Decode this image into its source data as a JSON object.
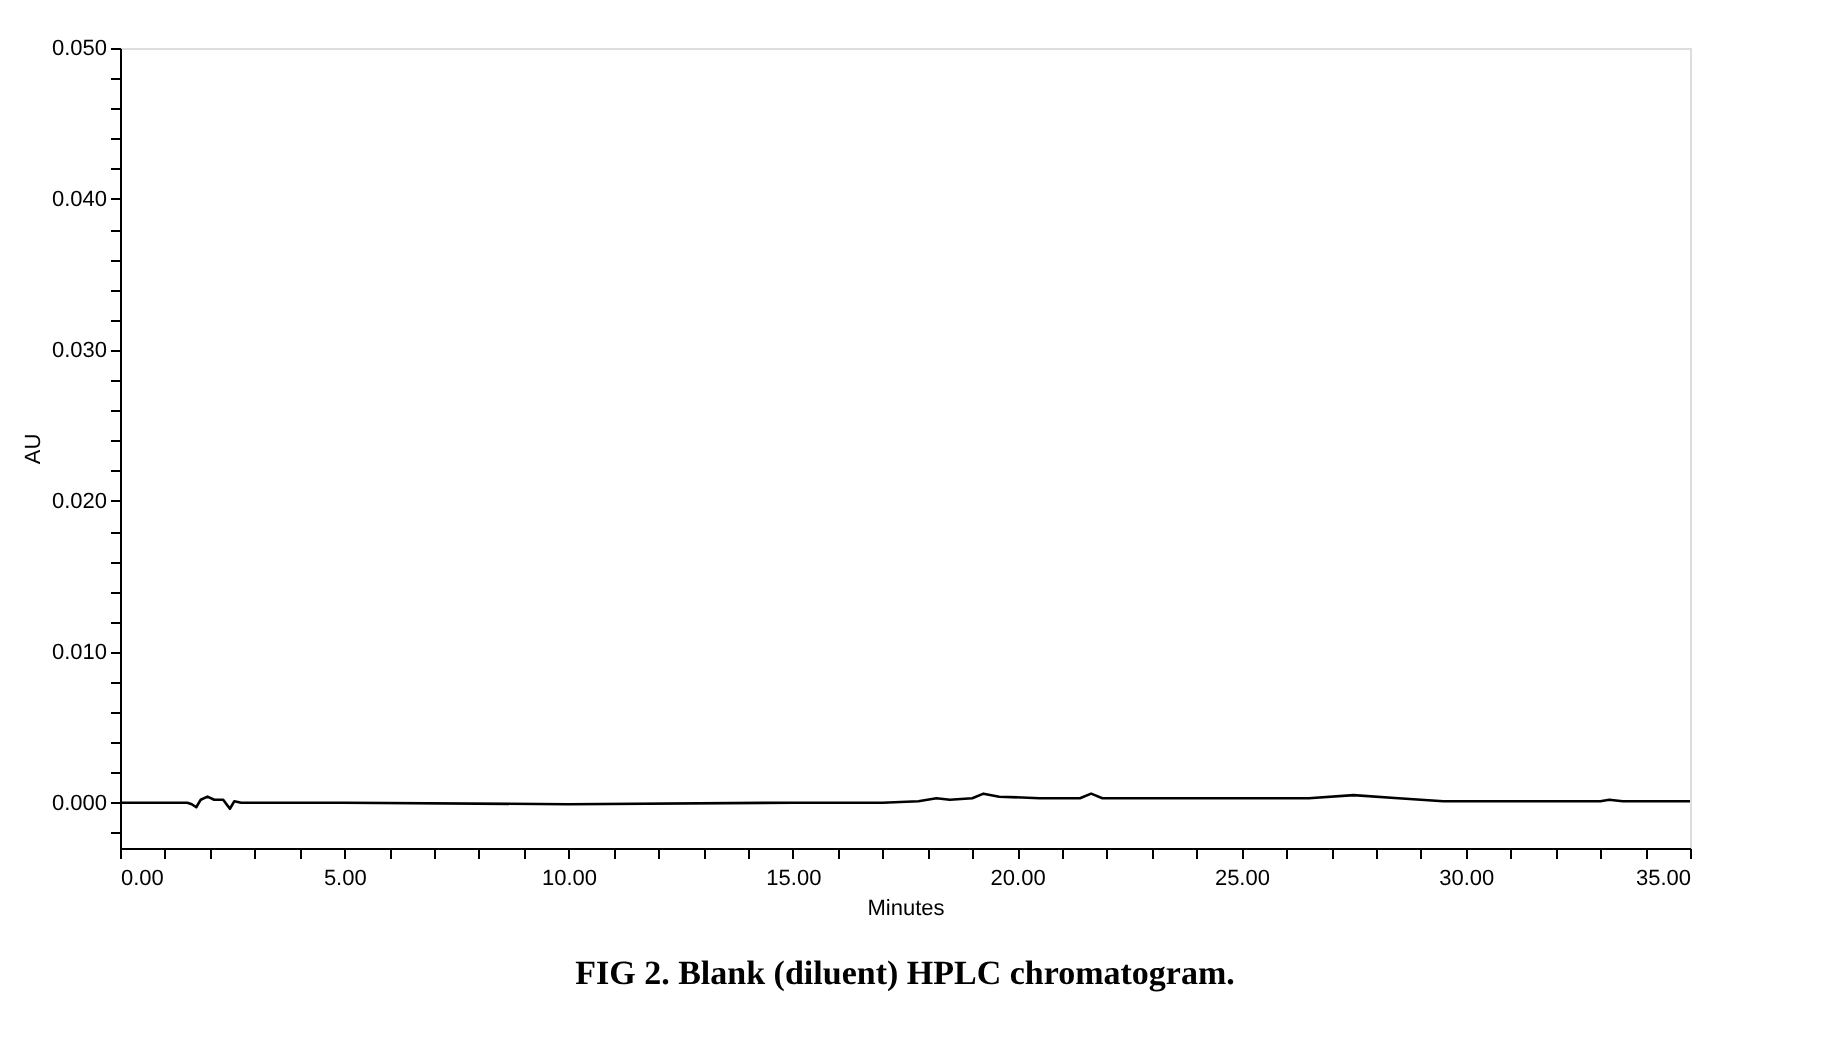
{
  "chart_data": {
    "type": "line",
    "title": "FIG 2. Blank (diluent) HPLC chromatogram.",
    "xlabel": "Minutes",
    "ylabel": "AU",
    "x": [
      0,
      1.5,
      1.6,
      1.7,
      1.8,
      1.95,
      2.1,
      2.3,
      2.45,
      2.55,
      2.7,
      5,
      10,
      15,
      17,
      17.8,
      18.2,
      18.5,
      19.0,
      19.25,
      19.6,
      20.5,
      21.4,
      21.65,
      21.9,
      23,
      25,
      26.5,
      27.5,
      28.5,
      29.5,
      32,
      33.0,
      33.2,
      33.5,
      35
    ],
    "series": [
      {
        "color": "#000000",
        "values": [
          0,
          0,
          -0.0001,
          -0.0003,
          0.0002,
          0.0004,
          0.0002,
          0.0002,
          -0.0004,
          0.0001,
          0,
          0,
          -0.0001,
          0,
          0,
          0.0001,
          0.0003,
          0.0002,
          0.0003,
          0.0006,
          0.0004,
          0.0003,
          0.0003,
          0.0006,
          0.0003,
          0.0003,
          0.0003,
          0.0003,
          0.0005,
          0.0003,
          0.0001,
          0.0001,
          0.0001,
          0.0002,
          0.0001,
          0.0001
        ]
      }
    ],
    "xlim": [
      0,
      35
    ],
    "ylim": [
      -0.003,
      0.05
    ],
    "xticks": [
      {
        "value": 0,
        "label": "0.00"
      },
      {
        "value": 1,
        "label": null
      },
      {
        "value": 2,
        "label": null
      },
      {
        "value": 3,
        "label": null
      },
      {
        "value": 4,
        "label": null
      },
      {
        "value": 5,
        "label": "5.00"
      },
      {
        "value": 6,
        "label": null
      },
      {
        "value": 7,
        "label": null
      },
      {
        "value": 8,
        "label": null
      },
      {
        "value": 9,
        "label": null
      },
      {
        "value": 10,
        "label": "10.00"
      },
      {
        "value": 11,
        "label": null
      },
      {
        "value": 12,
        "label": null
      },
      {
        "value": 13,
        "label": null
      },
      {
        "value": 14,
        "label": null
      },
      {
        "value": 15,
        "label": "15.00"
      },
      {
        "value": 16,
        "label": null
      },
      {
        "value": 17,
        "label": null
      },
      {
        "value": 18,
        "label": null
      },
      {
        "value": 19,
        "label": null
      },
      {
        "value": 20,
        "label": "20.00"
      },
      {
        "value": 21,
        "label": null
      },
      {
        "value": 22,
        "label": null
      },
      {
        "value": 23,
        "label": null
      },
      {
        "value": 24,
        "label": null
      },
      {
        "value": 25,
        "label": "25.00"
      },
      {
        "value": 26,
        "label": null
      },
      {
        "value": 27,
        "label": null
      },
      {
        "value": 28,
        "label": null
      },
      {
        "value": 29,
        "label": null
      },
      {
        "value": 30,
        "label": "30.00"
      },
      {
        "value": 31,
        "label": null
      },
      {
        "value": 32,
        "label": null
      },
      {
        "value": 33,
        "label": null
      },
      {
        "value": 34,
        "label": null
      },
      {
        "value": 35,
        "label": "35.00"
      }
    ],
    "yticks": [
      {
        "value": -0.002,
        "label": null
      },
      {
        "value": 0,
        "label": "0.000"
      },
      {
        "value": 0.002,
        "label": null
      },
      {
        "value": 0.004,
        "label": null
      },
      {
        "value": 0.006,
        "label": null
      },
      {
        "value": 0.008,
        "label": null
      },
      {
        "value": 0.01,
        "label": "0.010"
      },
      {
        "value": 0.012,
        "label": null
      },
      {
        "value": 0.014,
        "label": null
      },
      {
        "value": 0.016,
        "label": null
      },
      {
        "value": 0.018,
        "label": null
      },
      {
        "value": 0.02,
        "label": "0.020"
      },
      {
        "value": 0.022,
        "label": null
      },
      {
        "value": 0.024,
        "label": null
      },
      {
        "value": 0.026,
        "label": null
      },
      {
        "value": 0.028,
        "label": null
      },
      {
        "value": 0.03,
        "label": "0.030"
      },
      {
        "value": 0.032,
        "label": null
      },
      {
        "value": 0.034,
        "label": null
      },
      {
        "value": 0.036,
        "label": null
      },
      {
        "value": 0.038,
        "label": null
      },
      {
        "value": 0.04,
        "label": "0.040"
      },
      {
        "value": 0.042,
        "label": null
      },
      {
        "value": 0.044,
        "label": null
      },
      {
        "value": 0.046,
        "label": null
      },
      {
        "value": 0.048,
        "label": null
      },
      {
        "value": 0.05,
        "label": "0.050"
      }
    ],
    "grid": false,
    "marker": "none",
    "line_style": "solid"
  }
}
